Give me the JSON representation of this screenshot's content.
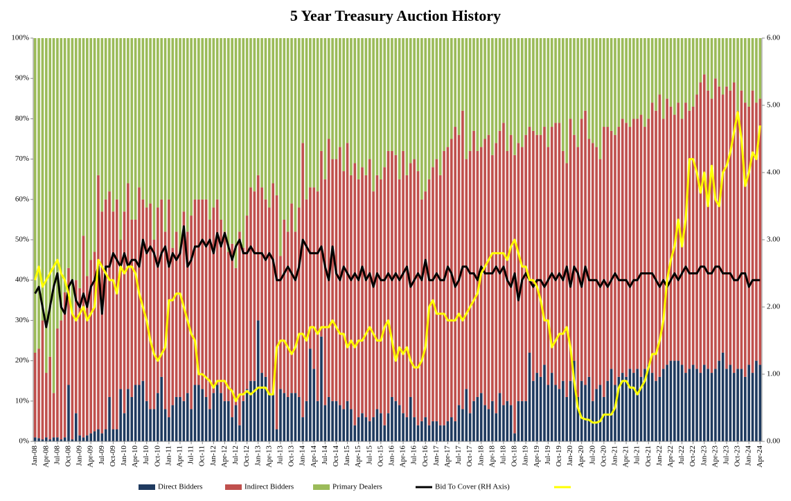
{
  "chart_data": {
    "type": "bar",
    "title": "5 Year Treasury Auction History",
    "categories": [
      "Jan-08",
      null,
      null,
      "Apr-08",
      null,
      null,
      "Jul-08",
      null,
      null,
      "Oct-08",
      null,
      null,
      "Jan-09",
      null,
      null,
      "Apr-09",
      null,
      null,
      "Jul-09",
      null,
      null,
      "Oct-09",
      null,
      null,
      "Jan-10",
      null,
      null,
      "Apr-10",
      null,
      null,
      "Jul-10",
      null,
      null,
      "Oct-10",
      null,
      null,
      "Jan-11",
      null,
      null,
      "Apr-11",
      null,
      null,
      "Jul-11",
      null,
      null,
      "Oct-11",
      null,
      null,
      "Jan-12",
      null,
      null,
      "Apr-12",
      null,
      null,
      "Jul-12",
      null,
      null,
      "Oct-12",
      null,
      null,
      "Jan-13",
      null,
      null,
      "Apr-13",
      null,
      null,
      "Jul-13",
      null,
      null,
      "Oct-13",
      null,
      null,
      "Jan-14",
      null,
      null,
      "Apr-14",
      null,
      null,
      "Jul-14",
      null,
      null,
      "Oct-14",
      null,
      null,
      "Jan-15",
      null,
      null,
      "Apr-15",
      null,
      null,
      "Jul-15",
      null,
      null,
      "Oct-15",
      null,
      null,
      "Jan-16",
      null,
      null,
      "Apr-16",
      null,
      null,
      "Jul-16",
      null,
      null,
      "Oct-16",
      null,
      null,
      "Jan-17",
      null,
      null,
      "Apr-17",
      null,
      null,
      "Jul-17",
      null,
      null,
      "Oct-17",
      null,
      null,
      "Jan-18",
      null,
      null,
      "Apr-18",
      null,
      null,
      "Jul-18",
      null,
      null,
      "Oct-18",
      null,
      null,
      "Jan-19",
      null,
      null,
      "Apr-19",
      null,
      null,
      "Jul-19",
      null,
      null,
      "Oct-19",
      null,
      null,
      "Jan-20",
      null,
      null,
      "Apr-20",
      null,
      null,
      "Jul-20",
      null,
      null,
      "Oct-20",
      null,
      null,
      "Jan-21",
      null,
      null,
      "Apr-21",
      null,
      null,
      "Jul-21",
      null,
      null,
      "Oct-21",
      null,
      null,
      "Jan-22",
      null,
      null,
      "Apr-22",
      null,
      null,
      "Jul-22",
      null,
      null,
      "Oct-22",
      null,
      null,
      "Jan-23",
      null,
      null,
      "Apr-23",
      null,
      null,
      "Jul-23",
      null,
      null,
      "Oct-23",
      null,
      null,
      "Jan-24",
      null,
      null,
      "Apr-24"
    ],
    "series": [
      {
        "name": "Direct Bidders",
        "color": "#1f3a5f",
        "values": [
          1,
          0.8,
          0.5,
          1,
          0.5,
          1,
          1,
          0.5,
          1,
          14,
          0.5,
          7,
          1.5,
          1,
          1.5,
          2,
          2.5,
          3,
          2,
          3,
          11,
          3,
          3,
          13,
          7,
          13,
          11,
          14,
          14,
          15,
          10,
          8,
          8,
          12,
          16,
          8,
          6,
          9,
          11,
          11,
          10,
          12,
          8,
          14,
          14,
          13,
          11,
          8,
          12,
          14,
          12,
          10,
          10,
          6,
          9,
          4,
          10,
          13,
          15,
          15,
          30,
          17,
          16,
          12,
          12,
          3,
          13,
          12,
          11,
          12,
          12,
          11,
          6,
          10,
          23,
          18,
          10,
          26,
          9,
          11,
          10,
          10,
          9,
          8,
          10,
          8,
          4,
          6,
          7,
          6,
          5,
          6,
          8,
          7,
          4,
          7,
          11,
          10,
          9,
          7,
          6,
          11,
          6,
          4,
          5,
          6,
          4,
          5,
          5,
          4,
          4,
          5,
          6,
          5,
          9,
          8,
          13,
          7,
          10,
          11,
          12,
          9,
          8,
          10,
          7,
          12,
          9,
          10,
          9,
          2,
          10,
          10,
          10,
          22,
          15,
          17,
          16,
          19,
          14,
          17,
          14,
          13,
          15,
          11,
          15,
          20,
          11,
          15,
          14,
          16,
          10,
          13,
          14,
          11,
          15,
          18,
          14,
          16,
          17,
          16,
          18,
          17,
          18,
          16,
          18,
          19,
          17,
          15,
          16,
          18,
          19,
          20,
          20,
          20,
          19,
          17,
          18,
          19,
          18,
          17,
          19,
          18,
          17,
          18,
          20,
          22,
          18,
          19,
          17,
          18,
          18,
          16,
          19,
          17,
          20,
          19
        ]
      },
      {
        "name": "Indirect Bidders",
        "color": "#c0504d",
        "values": [
          21,
          22.2,
          29.5,
          16,
          20.5,
          11,
          27,
          29.5,
          36,
          29,
          31.5,
          33,
          36.5,
          50,
          39.5,
          43,
          44.5,
          63,
          55,
          57,
          51,
          54,
          57,
          37,
          50,
          51,
          44,
          41,
          49,
          45,
          48,
          51,
          42,
          46,
          44,
          44,
          54,
          39,
          41,
          36,
          47,
          40,
          48,
          46,
          46,
          47,
          49,
          47,
          46,
          46,
          43,
          42,
          37,
          43,
          34,
          48,
          38,
          43,
          48,
          47,
          36,
          46,
          44,
          46,
          52,
          58,
          33,
          43,
          41,
          47,
          40,
          47,
          68,
          50,
          40,
          45,
          52,
          46,
          56,
          64,
          60,
          60,
          64,
          59,
          64,
          58,
          65,
          59,
          61,
          60,
          65,
          56,
          58,
          58,
          64,
          65,
          61,
          61,
          56,
          65,
          60,
          58,
          64,
          63,
          55,
          56,
          61,
          63,
          65,
          62,
          68,
          68,
          69,
          73,
          67,
          74,
          57,
          65,
          67,
          61,
          61,
          66,
          68,
          61,
          67,
          65,
          70,
          62,
          67,
          69,
          64,
          63,
          66,
          56,
          62,
          59,
          60,
          59,
          59,
          61,
          65,
          66,
          57,
          58,
          65,
          56,
          62,
          65,
          68,
          59,
          64,
          60,
          56,
          67,
          63,
          59,
          62,
          62,
          63,
          63,
          60,
          63,
          62,
          65,
          60,
          61,
          67,
          67,
          70,
          62,
          66,
          63,
          61,
          64,
          61,
          67,
          64,
          64,
          68,
          72,
          72,
          69,
          68,
          72,
          68,
          64,
          70,
          68,
          72,
          64,
          69,
          68,
          64,
          70,
          64,
          66
        ]
      },
      {
        "name": "Primary Dealers",
        "color": "#9bbb59",
        "values": [
          78,
          77,
          70,
          83,
          79,
          88,
          72,
          70,
          63,
          57,
          68,
          60,
          62,
          49,
          59,
          55,
          53,
          34,
          43,
          40,
          38,
          43,
          40,
          50,
          43,
          36,
          45,
          45,
          37,
          40,
          42,
          41,
          50,
          42,
          40,
          48,
          40,
          52,
          48,
          53,
          43,
          48,
          44,
          40,
          40,
          40,
          40,
          45,
          42,
          40,
          45,
          48,
          53,
          51,
          57,
          48,
          52,
          44,
          37,
          38,
          34,
          37,
          40,
          42,
          36,
          39,
          54,
          45,
          48,
          41,
          48,
          42,
          26,
          40,
          37,
          37,
          38,
          28,
          35,
          25,
          30,
          30,
          27,
          33,
          26,
          34,
          31,
          35,
          32,
          34,
          30,
          38,
          34,
          35,
          32,
          28,
          28,
          29,
          35,
          28,
          34,
          31,
          30,
          33,
          40,
          38,
          35,
          32,
          30,
          34,
          28,
          27,
          25,
          22,
          24,
          18,
          30,
          28,
          23,
          28,
          27,
          25,
          24,
          29,
          26,
          23,
          21,
          28,
          24,
          29,
          26,
          27,
          24,
          22,
          23,
          24,
          24,
          22,
          27,
          22,
          21,
          21,
          28,
          31,
          20,
          24,
          27,
          20,
          18,
          25,
          26,
          27,
          30,
          22,
          22,
          23,
          24,
          22,
          20,
          21,
          22,
          20,
          20,
          19,
          22,
          20,
          16,
          18,
          14,
          20,
          15,
          17,
          19,
          16,
          20,
          16,
          18,
          17,
          14,
          11,
          9,
          13,
          15,
          10,
          12,
          14,
          12,
          13,
          11,
          18,
          13,
          16,
          17,
          13,
          16,
          15
        ]
      },
      {
        "name": "Bid To Cover (RH Axis)",
        "color": "#000000",
        "axis": "y2",
        "values": [
          2.2,
          2.3,
          2.0,
          1.7,
          2.0,
          2.3,
          2.5,
          2.0,
          1.9,
          2.3,
          2.4,
          2.1,
          2.0,
          2.2,
          2.0,
          2.3,
          2.4,
          2.6,
          1.9,
          2.6,
          2.6,
          2.8,
          2.7,
          2.6,
          2.8,
          2.6,
          2.7,
          2.7,
          2.6,
          3.0,
          2.8,
          2.9,
          2.8,
          2.6,
          2.8,
          2.9,
          2.6,
          2.8,
          2.7,
          2.8,
          3.2,
          2.6,
          2.7,
          2.9,
          2.9,
          3.0,
          2.9,
          3.0,
          2.8,
          3.1,
          2.9,
          3.1,
          2.9,
          2.7,
          2.9,
          3.0,
          2.8,
          2.8,
          2.9,
          2.8,
          2.8,
          2.8,
          2.7,
          2.8,
          2.7,
          2.4,
          2.4,
          2.5,
          2.6,
          2.5,
          2.4,
          2.6,
          3.0,
          2.9,
          2.8,
          2.8,
          2.8,
          2.9,
          2.6,
          2.4,
          2.9,
          2.5,
          2.4,
          2.6,
          2.5,
          2.4,
          2.5,
          2.4,
          2.6,
          2.4,
          2.5,
          2.3,
          2.5,
          2.4,
          2.4,
          2.5,
          2.4,
          2.5,
          2.4,
          2.5,
          2.6,
          2.3,
          2.4,
          2.5,
          2.4,
          2.7,
          2.4,
          2.4,
          2.5,
          2.4,
          2.4,
          2.6,
          2.5,
          2.3,
          2.4,
          2.6,
          2.6,
          2.5,
          2.5,
          2.4,
          2.6,
          2.5,
          2.5,
          2.5,
          2.6,
          2.5,
          2.6,
          2.4,
          2.3,
          2.5,
          2.1,
          2.4,
          2.5,
          2.4,
          2.3,
          2.4,
          2.4,
          2.3,
          2.4,
          2.5,
          2.4,
          2.5,
          2.4,
          2.6,
          2.3,
          2.6,
          2.5,
          2.3,
          2.6,
          2.4,
          2.4,
          2.4,
          2.3,
          2.4,
          2.3,
          2.4,
          2.5,
          2.4,
          2.4,
          2.4,
          2.3,
          2.4,
          2.4,
          2.5,
          2.5,
          2.5,
          2.5,
          2.4,
          2.3,
          2.4,
          2.3,
          2.4,
          2.5,
          2.4,
          2.5,
          2.6,
          2.5,
          2.5,
          2.5,
          2.6,
          2.6,
          2.5,
          2.5,
          2.6,
          2.6,
          2.5,
          2.5,
          2.5,
          2.4,
          2.4,
          2.5,
          2.5,
          2.3,
          2.4,
          2.4,
          2.4
        ]
      },
      {
        "name": null,
        "color": "#ffff00",
        "axis": "y2",
        "values": [
          2.4,
          2.6,
          2.3,
          2.4,
          2.5,
          2.6,
          2.7,
          2.5,
          2.4,
          2.2,
          1.9,
          1.8,
          1.9,
          2.0,
          1.8,
          1.9,
          2.0,
          2.7,
          2.6,
          2.5,
          2.4,
          2.4,
          2.2,
          2.6,
          2.5,
          2.6,
          2.6,
          2.5,
          2.2,
          2.0,
          1.8,
          1.5,
          1.3,
          1.2,
          1.3,
          1.4,
          2.1,
          2.1,
          2.2,
          2.2,
          2.0,
          1.8,
          1.6,
          1.5,
          1.0,
          1.0,
          0.95,
          0.9,
          0.8,
          0.9,
          0.9,
          0.9,
          0.8,
          0.75,
          0.6,
          0.7,
          0.7,
          0.75,
          0.7,
          0.75,
          0.8,
          0.8,
          0.8,
          0.7,
          0.7,
          1.4,
          1.5,
          1.5,
          1.4,
          1.3,
          1.4,
          1.6,
          1.6,
          1.5,
          1.7,
          1.7,
          1.6,
          1.7,
          1.7,
          1.7,
          1.8,
          1.7,
          1.6,
          1.6,
          1.4,
          1.5,
          1.4,
          1.5,
          1.5,
          1.6,
          1.7,
          1.6,
          1.5,
          1.5,
          1.7,
          1.8,
          1.5,
          1.2,
          1.4,
          1.3,
          1.4,
          1.2,
          1.1,
          1.1,
          1.2,
          1.4,
          2.0,
          2.1,
          1.9,
          1.9,
          1.9,
          1.8,
          1.8,
          1.8,
          1.9,
          1.8,
          1.9,
          2.0,
          2.1,
          2.2,
          2.5,
          2.6,
          2.7,
          2.8,
          2.8,
          2.8,
          2.8,
          2.7,
          2.9,
          3.0,
          2.8,
          2.6,
          2.6,
          2.4,
          2.4,
          2.3,
          2.1,
          1.8,
          1.8,
          1.4,
          1.5,
          1.6,
          1.6,
          1.7,
          1.4,
          0.9,
          0.5,
          0.35,
          0.33,
          0.32,
          0.28,
          0.28,
          0.3,
          0.4,
          0.4,
          0.4,
          0.5,
          0.8,
          0.9,
          0.9,
          0.8,
          0.8,
          0.7,
          0.8,
          0.9,
          1.1,
          1.3,
          1.3,
          1.5,
          1.8,
          2.4,
          2.7,
          2.9,
          3.3,
          2.9,
          3.3,
          4.2,
          4.2,
          4.0,
          3.7,
          4.0,
          3.5,
          4.1,
          3.6,
          3.5,
          4.0,
          4.1,
          4.3,
          4.6,
          4.9,
          4.5,
          3.8,
          4.0,
          4.3,
          4.2,
          4.7
        ]
      }
    ],
    "stacked": true,
    "ylim": [
      0,
      100
    ],
    "yticks": [
      {
        "value": 0,
        "label": "0%"
      },
      {
        "value": 10,
        "label": "10%"
      },
      {
        "value": 20,
        "label": "20%"
      },
      {
        "value": 30,
        "label": "30%"
      },
      {
        "value": 40,
        "label": "40%"
      },
      {
        "value": 50,
        "label": "50%"
      },
      {
        "value": 60,
        "label": "60%"
      },
      {
        "value": 70,
        "label": "70%"
      },
      {
        "value": 80,
        "label": "80%"
      },
      {
        "value": 90,
        "label": "90%"
      },
      {
        "value": 100,
        "label": "100%"
      }
    ],
    "y2lim": [
      0,
      6
    ],
    "y2ticks": [
      {
        "value": 0,
        "label": "0.00"
      },
      {
        "value": 1,
        "label": "1.00"
      },
      {
        "value": 2,
        "label": "2.00"
      },
      {
        "value": 3,
        "label": "3.00"
      },
      {
        "value": 4,
        "label": "4.00"
      },
      {
        "value": 5,
        "label": "5.00"
      },
      {
        "value": 6,
        "label": "6.00"
      }
    ],
    "grid": false,
    "legend": "bottom"
  }
}
